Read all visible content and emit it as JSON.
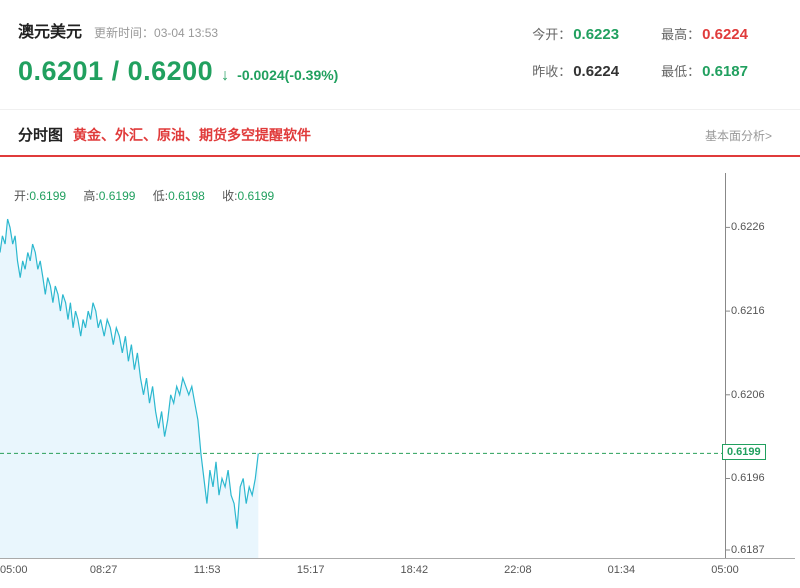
{
  "header": {
    "symbol": "澳元美元",
    "update_label": "更新时间：03-04 13:53",
    "price_pair": "0.6201 / 0.6200",
    "arrow": "↓",
    "change": "-0.0024(-0.39%)",
    "quotes": {
      "open_label": "今开：",
      "open": "0.6223",
      "high_label": "最高：",
      "high": "0.6224",
      "prev_close_label": "昨收：",
      "prev_close": "0.6224",
      "low_label": "最低：",
      "low": "0.6187"
    }
  },
  "section": {
    "tab": "分时图",
    "promo": "黄金、外汇、原油、期货多空提醒软件",
    "link": "基本面分析>"
  },
  "chart": {
    "ohlc": {
      "open_label": "开:",
      "open": "0.6199",
      "high_label": "高:",
      "high": "0.6199",
      "low_label": "低:",
      "low": "0.6198",
      "close_label": "收:",
      "close": "0.6199"
    },
    "current_price": "0.6199"
  },
  "colors": {
    "up_green": "#21a05f",
    "down_red": "#e03b3b",
    "line": "#2cb8cf",
    "fill": "#e9f6fd",
    "reference": "#2aa05a"
  },
  "chart_data": {
    "type": "line",
    "title": "澳元美元 分时图",
    "x_unit": "hours (24h session from 05:00 to 05:00)",
    "x_range": [
      5,
      29
    ],
    "x_tick_labels": [
      "05:00",
      "08:27",
      "11:53",
      "15:17",
      "18:42",
      "22:08",
      "01:34",
      "05:00"
    ],
    "y_ticks": [
      0.6226,
      0.6216,
      0.6206,
      0.6196,
      0.6187
    ],
    "ylim": [
      0.61865,
      0.62325
    ],
    "reference_line": 0.6199,
    "grid": false,
    "legend_position": "top-left",
    "line_color": "#2cb8cf",
    "fill_color": "#e9f6fd",
    "series": [
      {
        "name": "AUD/USD",
        "points": [
          [
            5.0,
            0.6223
          ],
          [
            5.08,
            0.6225
          ],
          [
            5.17,
            0.6224
          ],
          [
            5.25,
            0.6227
          ],
          [
            5.33,
            0.6226
          ],
          [
            5.42,
            0.6224
          ],
          [
            5.5,
            0.6225
          ],
          [
            5.58,
            0.6222
          ],
          [
            5.67,
            0.622
          ],
          [
            5.75,
            0.6222
          ],
          [
            5.83,
            0.6221
          ],
          [
            5.92,
            0.6223
          ],
          [
            6.0,
            0.6222
          ],
          [
            6.08,
            0.6224
          ],
          [
            6.17,
            0.6223
          ],
          [
            6.25,
            0.6221
          ],
          [
            6.33,
            0.6222
          ],
          [
            6.42,
            0.622
          ],
          [
            6.5,
            0.6218
          ],
          [
            6.58,
            0.622
          ],
          [
            6.67,
            0.6219
          ],
          [
            6.75,
            0.6217
          ],
          [
            6.83,
            0.6219
          ],
          [
            6.92,
            0.6218
          ],
          [
            7.0,
            0.6216
          ],
          [
            7.08,
            0.6218
          ],
          [
            7.17,
            0.6217
          ],
          [
            7.25,
            0.6215
          ],
          [
            7.33,
            0.6217
          ],
          [
            7.42,
            0.6214
          ],
          [
            7.5,
            0.6216
          ],
          [
            7.58,
            0.6215
          ],
          [
            7.67,
            0.6213
          ],
          [
            7.75,
            0.6215
          ],
          [
            7.83,
            0.6214
          ],
          [
            7.92,
            0.6216
          ],
          [
            8.0,
            0.6215
          ],
          [
            8.08,
            0.6217
          ],
          [
            8.17,
            0.6216
          ],
          [
            8.25,
            0.6214
          ],
          [
            8.33,
            0.6215
          ],
          [
            8.45,
            0.6213
          ],
          [
            8.55,
            0.6215
          ],
          [
            8.65,
            0.6214
          ],
          [
            8.75,
            0.6212
          ],
          [
            8.85,
            0.6214
          ],
          [
            8.95,
            0.6213
          ],
          [
            9.05,
            0.6211
          ],
          [
            9.15,
            0.6213
          ],
          [
            9.25,
            0.621
          ],
          [
            9.35,
            0.6212
          ],
          [
            9.45,
            0.6209
          ],
          [
            9.55,
            0.6211
          ],
          [
            9.65,
            0.6208
          ],
          [
            9.75,
            0.6206
          ],
          [
            9.85,
            0.6208
          ],
          [
            9.95,
            0.6205
          ],
          [
            10.05,
            0.6207
          ],
          [
            10.15,
            0.6204
          ],
          [
            10.25,
            0.6202
          ],
          [
            10.35,
            0.6204
          ],
          [
            10.45,
            0.6201
          ],
          [
            10.55,
            0.6203
          ],
          [
            10.65,
            0.6206
          ],
          [
            10.75,
            0.6205
          ],
          [
            10.85,
            0.6207
          ],
          [
            10.95,
            0.6206
          ],
          [
            11.05,
            0.6208
          ],
          [
            11.15,
            0.6207
          ],
          [
            11.25,
            0.6206
          ],
          [
            11.35,
            0.6207
          ],
          [
            11.45,
            0.6205
          ],
          [
            11.55,
            0.6203
          ],
          [
            11.65,
            0.6199
          ],
          [
            11.75,
            0.6196
          ],
          [
            11.85,
            0.6193
          ],
          [
            11.95,
            0.6197
          ],
          [
            12.05,
            0.6195
          ],
          [
            12.15,
            0.6198
          ],
          [
            12.25,
            0.6194
          ],
          [
            12.35,
            0.6196
          ],
          [
            12.45,
            0.6195
          ],
          [
            12.55,
            0.6197
          ],
          [
            12.65,
            0.6194
          ],
          [
            12.75,
            0.6193
          ],
          [
            12.85,
            0.619
          ],
          [
            12.95,
            0.6195
          ],
          [
            13.05,
            0.6196
          ],
          [
            13.15,
            0.6193
          ],
          [
            13.25,
            0.6195
          ],
          [
            13.35,
            0.6194
          ],
          [
            13.45,
            0.6196
          ],
          [
            13.55,
            0.6199
          ]
        ]
      }
    ]
  }
}
